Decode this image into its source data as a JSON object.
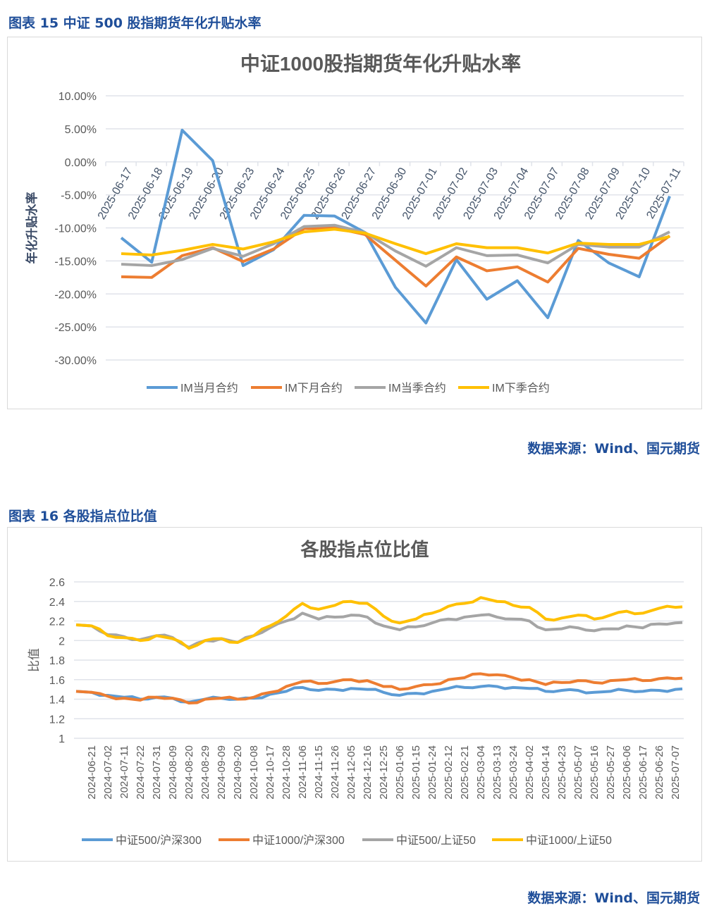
{
  "figure15": {
    "caption": "图表 15  中证 500 股指期货年化升贴水率",
    "source": "数据来源：Wind、国元期货"
  },
  "figure16": {
    "caption": "图表 16  各股指点位比值",
    "source": "数据来源：Wind、国元期货"
  },
  "chart_data": [
    {
      "type": "line",
      "title": "中证1000股指期货年化升贴水率",
      "ylabel": "年化升贴水率",
      "xlabel": "",
      "ylim": [
        -30,
        10
      ],
      "yticks": [
        "10.00%",
        "5.00%",
        "0.00%",
        "-5.00%",
        "-10.00%",
        "-15.00%",
        "-20.00%",
        "-25.00%",
        "-30.00%"
      ],
      "grid": true,
      "legend": "bottom",
      "unit": "%",
      "categories": [
        "2025-06-17",
        "2025-06-18",
        "2025-06-19",
        "2025-06-20",
        "2025-06-23",
        "2025-06-24",
        "2025-06-25",
        "2025-06-26",
        "2025-06-27",
        "2025-06-30",
        "2025-07-01",
        "2025-07-02",
        "2025-07-03",
        "2025-07-04",
        "2025-07-07",
        "2025-07-08",
        "2025-07-09",
        "2025-07-10",
        "2025-07-11"
      ],
      "series": [
        {
          "name": "IM当月合约",
          "color": "#5b9bd5",
          "values": [
            -11.5,
            -15.2,
            4.8,
            0.2,
            -15.7,
            -13.3,
            -8.1,
            -8.2,
            -10.7,
            -19.0,
            -24.4,
            -14.8,
            -20.8,
            -18.0,
            -23.6,
            -11.9,
            -15.3,
            -17.4,
            -5.2
          ]
        },
        {
          "name": "IM下月合约",
          "color": "#ed7d31",
          "values": [
            -17.4,
            -17.5,
            -14.2,
            -13.0,
            -15.1,
            -13.2,
            -10.1,
            -10.0,
            -11.0,
            -14.9,
            -18.8,
            -14.4,
            -16.5,
            -15.9,
            -18.2,
            -13.1,
            -14.0,
            -14.6,
            -11.2
          ]
        },
        {
          "name": "IM当季合约",
          "color": "#a5a5a5",
          "values": [
            -15.5,
            -15.7,
            -14.8,
            -13.1,
            -14.3,
            -12.4,
            -9.8,
            -9.6,
            -10.7,
            -13.5,
            -15.8,
            -13.0,
            -14.2,
            -14.1,
            -15.3,
            -12.5,
            -12.9,
            -12.9,
            -10.6
          ]
        },
        {
          "name": "IM下季合约",
          "color": "#ffc000",
          "values": [
            -13.9,
            -14.1,
            -13.4,
            -12.5,
            -13.2,
            -12.1,
            -10.6,
            -10.2,
            -10.8,
            -12.4,
            -13.9,
            -12.4,
            -13.0,
            -13.0,
            -13.8,
            -12.3,
            -12.5,
            -12.5,
            -11.3
          ]
        }
      ]
    },
    {
      "type": "line",
      "title": "各股指点位比值",
      "ylabel": "比值",
      "xlabel": "",
      "ylim": [
        1,
        2.6
      ],
      "yticks": [
        "2.6",
        "2.4",
        "2.2",
        "2",
        "1.8",
        "1.6",
        "1.4",
        "1.2",
        "1"
      ],
      "grid": true,
      "legend": "bottom",
      "categories": [
        "2024-06-21",
        "2024-07-02",
        "2024-07-11",
        "2024-07-22",
        "2024-07-31",
        "2024-08-09",
        "2024-08-20",
        "2024-08-29",
        "2024-09-09",
        "2024-09-20",
        "2024-10-08",
        "2024-10-17",
        "2024-10-28",
        "2024-11-06",
        "2024-11-15",
        "2024-11-26",
        "2024-12-05",
        "2024-12-16",
        "2024-12-25",
        "2025-01-06",
        "2025-01-15",
        "2025-01-24",
        "2025-02-12",
        "2025-02-21",
        "2025-03-04",
        "2025-03-13",
        "2025-03-24",
        "2025-04-02",
        "2025-04-14",
        "2025-04-23",
        "2025-05-07",
        "2025-05-16",
        "2025-05-27",
        "2025-06-06",
        "2025-06-17",
        "2025-06-26",
        "2025-07-07"
      ],
      "series": [
        {
          "name": "中证500/沪深300",
          "color": "#5b9bd5",
          "values": [
            1.47,
            1.44,
            1.42,
            1.4,
            1.42,
            1.41,
            1.37,
            1.4,
            1.41,
            1.4,
            1.41,
            1.45,
            1.48,
            1.52,
            1.49,
            1.5,
            1.51,
            1.5,
            1.47,
            1.44,
            1.46,
            1.48,
            1.51,
            1.52,
            1.53,
            1.53,
            1.52,
            1.51,
            1.48,
            1.49,
            1.49,
            1.47,
            1.48,
            1.49,
            1.48,
            1.49,
            1.5
          ]
        },
        {
          "name": "中证1000/沪深300",
          "color": "#ed7d31",
          "values": [
            1.47,
            1.43,
            1.41,
            1.39,
            1.42,
            1.41,
            1.36,
            1.4,
            1.41,
            1.4,
            1.42,
            1.47,
            1.53,
            1.58,
            1.56,
            1.58,
            1.6,
            1.59,
            1.53,
            1.5,
            1.53,
            1.55,
            1.6,
            1.62,
            1.66,
            1.65,
            1.62,
            1.6,
            1.55,
            1.57,
            1.59,
            1.57,
            1.59,
            1.6,
            1.59,
            1.61,
            1.61
          ]
        },
        {
          "name": "中证500/上证50",
          "color": "#a5a5a5",
          "values": [
            2.15,
            2.06,
            2.04,
            2.01,
            2.05,
            2.03,
            1.93,
            2.0,
            2.02,
            1.98,
            2.05,
            2.13,
            2.2,
            2.28,
            2.22,
            2.24,
            2.26,
            2.24,
            2.15,
            2.11,
            2.14,
            2.18,
            2.22,
            2.24,
            2.26,
            2.24,
            2.22,
            2.2,
            2.11,
            2.12,
            2.13,
            2.1,
            2.12,
            2.15,
            2.13,
            2.17,
            2.18
          ]
        },
        {
          "name": "中证1000/上证50",
          "color": "#ffc000",
          "values": [
            2.15,
            2.05,
            2.03,
            2.0,
            2.05,
            2.02,
            1.92,
            2.0,
            2.02,
            1.98,
            2.05,
            2.15,
            2.25,
            2.38,
            2.32,
            2.36,
            2.4,
            2.38,
            2.25,
            2.18,
            2.22,
            2.28,
            2.35,
            2.38,
            2.44,
            2.4,
            2.36,
            2.34,
            2.22,
            2.23,
            2.26,
            2.22,
            2.26,
            2.3,
            2.28,
            2.33,
            2.34
          ]
        }
      ]
    }
  ]
}
